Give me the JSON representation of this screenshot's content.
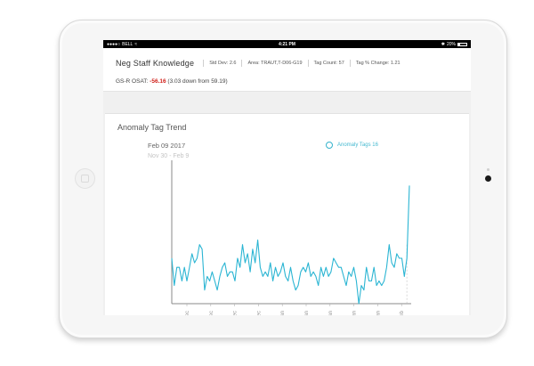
{
  "statusbar": {
    "carrier": "BELL",
    "time": "4:21 PM",
    "battery": "20%"
  },
  "header": {
    "title": "Neg Staff Knowledge",
    "std_dev": "Std Dev: 2.6",
    "area": "Area: TRAUT,T-D06-G19",
    "tag_count": "Tag Count: 57",
    "tag_change": "Tag % Change: 1.21"
  },
  "osat": {
    "label": "GS-R OSAT:",
    "value": "-56.16",
    "note": "(3.03 down from 59.19)"
  },
  "trend": {
    "title": "Anomaly Tag Trend",
    "date": "Feb 09 2017",
    "range": "Nov 30 - Feb 9",
    "legend": "Anomaly Tags 16"
  },
  "colors": {
    "line": "#2bb5d3",
    "negative": "#d0201a"
  },
  "chart_data": {
    "type": "line",
    "series": [
      {
        "name": "Anomaly Tags",
        "values": [
          10,
          4,
          8,
          8,
          5,
          8,
          5,
          8,
          11,
          9,
          10,
          13,
          12,
          3,
          6,
          5,
          7,
          5,
          3,
          6,
          8,
          9,
          6,
          7,
          7,
          5,
          10,
          8,
          13,
          9,
          11,
          7,
          12,
          9,
          14,
          8,
          6,
          7,
          6,
          9,
          5,
          8,
          6,
          7,
          9,
          6,
          5,
          8,
          5,
          3,
          4,
          7,
          8,
          7,
          9,
          6,
          7,
          6,
          4,
          8,
          6,
          8,
          6,
          7,
          10,
          9,
          8,
          8,
          6,
          4,
          7,
          6,
          8,
          5,
          0,
          4,
          3,
          8,
          5,
          5,
          8,
          4,
          5,
          4,
          5,
          8,
          13,
          9,
          8,
          11,
          10,
          10,
          6,
          10,
          26
        ]
      }
    ],
    "x_ticks": [
      "04 Dec",
      "11 Dec",
      "18 Dec",
      "25 Dec",
      "01 Jan",
      "08 Jan",
      "15 Jan",
      "22 Jan",
      "29 Jan",
      "05 Feb"
    ],
    "ylim": [
      0,
      30
    ],
    "grid": false
  }
}
